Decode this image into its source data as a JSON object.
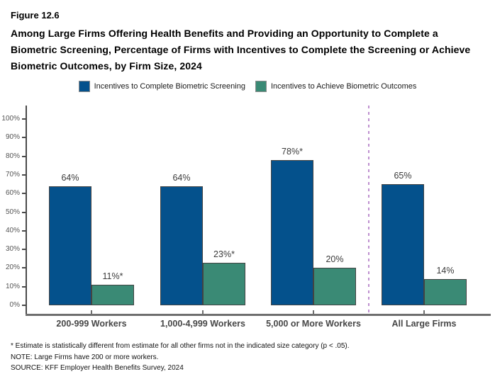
{
  "figure": {
    "number": "Figure 12.6",
    "title": "Among Large Firms Offering Health Benefits and Providing an Opportunity to Complete a Biometric Screening, Percentage of Firms with Incentives to Complete the Screening or Achieve Biometric Outcomes, by Firm Size, 2024"
  },
  "legend": [
    {
      "label": "Incentives to Complete Biometric Screening",
      "color": "#04518C"
    },
    {
      "label": "Incentives to Achieve Biometric Outcomes",
      "color": "#3A8A75"
    }
  ],
  "chart_data": {
    "type": "bar",
    "title": "Percentage of Firms with Incentives to Complete the Screening or Achieve Biometric Outcomes, by Firm Size, 2024",
    "categories": [
      "200-999 Workers",
      "1,000-4,999 Workers",
      "5,000 or More Workers",
      "All Large Firms"
    ],
    "series": [
      {
        "name": "Incentives to Complete Biometric Screening",
        "color": "#04518C",
        "values": [
          64,
          64,
          78,
          65
        ],
        "labels": [
          "64%",
          "64%",
          "78%*",
          "65%"
        ]
      },
      {
        "name": "Incentives to Achieve Biometric Outcomes",
        "color": "#3A8A75",
        "values": [
          11,
          23,
          20,
          14
        ],
        "labels": [
          "11%*",
          "23%*",
          "20%",
          "14%"
        ]
      }
    ],
    "xlabel": "",
    "ylabel": "",
    "ylim": [
      0,
      100
    ],
    "y_tick_step": 10,
    "y_tick_labels": [
      "0%",
      "10%",
      "20%",
      "30%",
      "40%",
      "50%",
      "60%",
      "70%",
      "80%",
      "90%",
      "100%"
    ],
    "grid": false,
    "legend_position": "top",
    "separator": {
      "before_category": "All Large Firms",
      "style": "dashed",
      "color": "#BE90CF"
    }
  },
  "footnotes": [
    "* Estimate is statistically different from estimate for all other firms not in the indicated size category (p < .05).",
    "NOTE: Large Firms have 200 or more workers.",
    "SOURCE: KFF Employer Health Benefits Survey, 2024"
  ]
}
